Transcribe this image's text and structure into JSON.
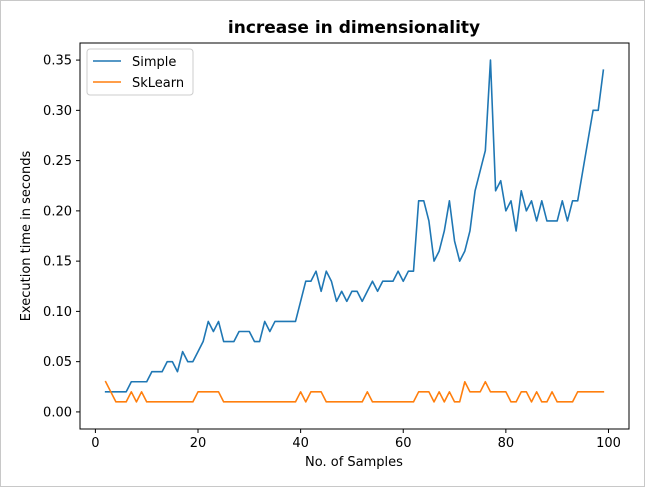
{
  "chart_data": {
    "type": "line",
    "title": "increase in dimensionality",
    "xlabel": "No. of Samples",
    "ylabel": "Execution time in seconds",
    "xlim": [
      -3,
      104
    ],
    "ylim": [
      -0.017,
      0.367
    ],
    "xticks": [
      0,
      20,
      40,
      60,
      80,
      100
    ],
    "yticks": [
      0.0,
      0.05,
      0.1,
      0.15,
      0.2,
      0.25,
      0.3,
      0.35
    ],
    "ytick_labels": [
      "0.00",
      "0.05",
      "0.10",
      "0.15",
      "0.20",
      "0.25",
      "0.30",
      "0.35"
    ],
    "grid": false,
    "legend_position": "top-left",
    "x": [
      2,
      3,
      4,
      5,
      6,
      7,
      8,
      9,
      10,
      11,
      12,
      13,
      14,
      15,
      16,
      17,
      18,
      19,
      20,
      21,
      22,
      23,
      24,
      25,
      26,
      27,
      28,
      29,
      30,
      31,
      32,
      33,
      34,
      35,
      36,
      37,
      38,
      39,
      40,
      41,
      42,
      43,
      44,
      45,
      46,
      47,
      48,
      49,
      50,
      51,
      52,
      53,
      54,
      55,
      56,
      57,
      58,
      59,
      60,
      61,
      62,
      63,
      64,
      65,
      66,
      67,
      68,
      69,
      70,
      71,
      72,
      73,
      74,
      75,
      76,
      77,
      78,
      79,
      80,
      81,
      82,
      83,
      84,
      85,
      86,
      87,
      88,
      89,
      90,
      91,
      92,
      93,
      94,
      95,
      96,
      97,
      98,
      99
    ],
    "series": [
      {
        "name": "Simple",
        "color": "#1f77b4",
        "values": [
          0.02,
          0.02,
          0.02,
          0.02,
          0.02,
          0.03,
          0.03,
          0.03,
          0.03,
          0.04,
          0.04,
          0.04,
          0.05,
          0.05,
          0.04,
          0.06,
          0.05,
          0.05,
          0.06,
          0.07,
          0.09,
          0.08,
          0.09,
          0.07,
          0.07,
          0.07,
          0.08,
          0.08,
          0.08,
          0.07,
          0.07,
          0.09,
          0.08,
          0.09,
          0.09,
          0.09,
          0.09,
          0.09,
          0.11,
          0.13,
          0.13,
          0.14,
          0.12,
          0.14,
          0.13,
          0.11,
          0.12,
          0.11,
          0.12,
          0.12,
          0.11,
          0.12,
          0.13,
          0.12,
          0.13,
          0.13,
          0.13,
          0.14,
          0.13,
          0.14,
          0.14,
          0.21,
          0.21,
          0.19,
          0.15,
          0.16,
          0.18,
          0.21,
          0.17,
          0.15,
          0.16,
          0.18,
          0.22,
          0.24,
          0.26,
          0.35,
          0.22,
          0.23,
          0.2,
          0.21,
          0.18,
          0.22,
          0.2,
          0.21,
          0.19,
          0.21,
          0.19,
          0.19,
          0.19,
          0.21,
          0.19,
          0.21,
          0.21,
          0.24,
          0.27,
          0.3,
          0.3,
          0.34
        ]
      },
      {
        "name": "SkLearn",
        "color": "#ff7f0e",
        "values": [
          0.03,
          0.02,
          0.01,
          0.01,
          0.01,
          0.02,
          0.01,
          0.02,
          0.01,
          0.01,
          0.01,
          0.01,
          0.01,
          0.01,
          0.01,
          0.01,
          0.01,
          0.01,
          0.02,
          0.02,
          0.02,
          0.02,
          0.02,
          0.01,
          0.01,
          0.01,
          0.01,
          0.01,
          0.01,
          0.01,
          0.01,
          0.01,
          0.01,
          0.01,
          0.01,
          0.01,
          0.01,
          0.01,
          0.02,
          0.01,
          0.02,
          0.02,
          0.02,
          0.01,
          0.01,
          0.01,
          0.01,
          0.01,
          0.01,
          0.01,
          0.01,
          0.02,
          0.01,
          0.01,
          0.01,
          0.01,
          0.01,
          0.01,
          0.01,
          0.01,
          0.01,
          0.02,
          0.02,
          0.02,
          0.01,
          0.02,
          0.01,
          0.02,
          0.01,
          0.01,
          0.03,
          0.02,
          0.02,
          0.02,
          0.03,
          0.02,
          0.02,
          0.02,
          0.02,
          0.01,
          0.01,
          0.02,
          0.02,
          0.01,
          0.02,
          0.01,
          0.01,
          0.02,
          0.01,
          0.01,
          0.01,
          0.01,
          0.02,
          0.02,
          0.02,
          0.02,
          0.02,
          0.02
        ]
      }
    ]
  }
}
